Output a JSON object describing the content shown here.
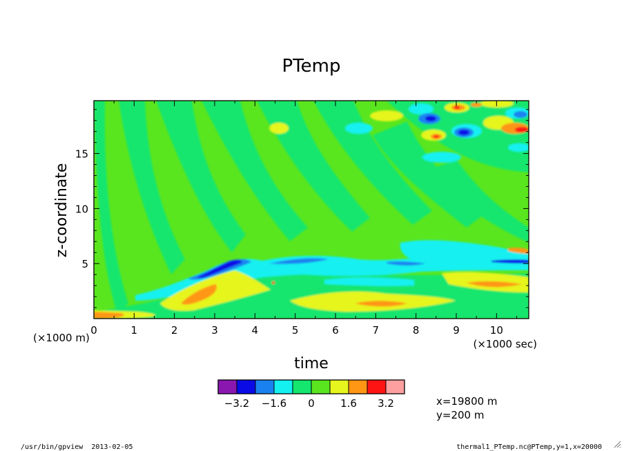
{
  "chart_data": {
    "type": "heatmap",
    "title": "PTemp",
    "xlabel": "time",
    "ylabel": "z-coordinate",
    "x_unit_label": "(×1000 sec)",
    "y_unit_label": "(×1000 m)",
    "xlim": [
      0,
      10.8
    ],
    "ylim": [
      0,
      19.8
    ],
    "x_ticks": [
      0,
      1,
      2,
      3,
      4,
      5,
      6,
      7,
      8,
      9,
      10
    ],
    "y_ticks": [
      5,
      10,
      15
    ],
    "colorbar": {
      "levels": [
        -4.0,
        -3.2,
        -2.4,
        -1.6,
        -0.8,
        0.0,
        0.8,
        1.6,
        2.4,
        3.2,
        4.0
      ],
      "colors": [
        "#8a18b0",
        "#0a0ae6",
        "#1a82f0",
        "#14f0f0",
        "#14e66e",
        "#5ae61e",
        "#e6f51e",
        "#ff9614",
        "#ff1414",
        "#ffa0a0"
      ],
      "labels": [
        "−3.2",
        "−1.6",
        "0",
        "1.6",
        "3.2"
      ],
      "label_values": [
        -3.2,
        -1.6,
        0.0,
        1.6,
        3.2
      ]
    },
    "annotations": [
      "x=19800 m",
      "y=200 m"
    ]
  },
  "footer": {
    "left": "/usr/bin/gpview  2013-02-05",
    "right": "thermal1_PTemp.nc@PTemp,y=1,x=20000"
  }
}
